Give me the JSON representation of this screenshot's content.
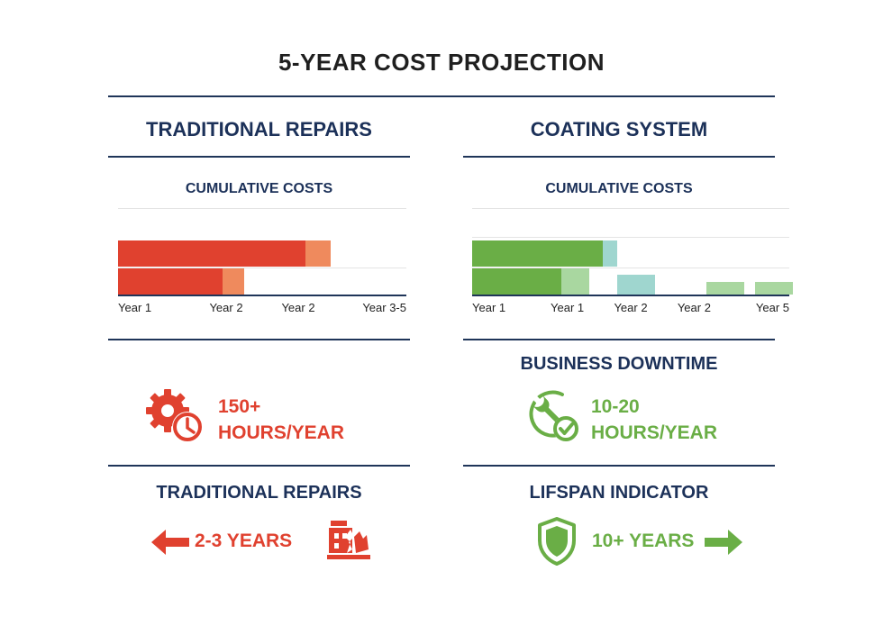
{
  "page": {
    "title": "5-YEAR COST PROJECTION"
  },
  "left": {
    "heading": "TRADITIONAL REPAIRS",
    "chart_subtitle": "CUMULATIVE COSTS",
    "downtime_value": "150+",
    "downtime_unit": "HOURS/YEAR",
    "bottom_heading": "TRADITIONAL REPAIRS",
    "lifespan": "2-3 YEARS",
    "icons": [
      "gear-clock-icon",
      "arrow-left-icon",
      "broken-building-icon"
    ]
  },
  "right": {
    "heading": "COATING SYSTEM",
    "chart_subtitle": "CUMULATIVE COSTS",
    "downtime_heading": "BUSINESS DOWNTIME",
    "downtime_value": "10-20",
    "downtime_unit": "HOURS/YEAR",
    "bottom_heading": "LIFSPAN INDICATOR",
    "lifespan": "10+ YEARS",
    "icons": [
      "wrench-check-icon",
      "shield-icon",
      "arrow-right-icon"
    ]
  },
  "colors": {
    "title_navy": "#1c3159",
    "red": "#e0412f",
    "red_light": "#ef8a5d",
    "green": "#6aae46",
    "green_light": "#a9d7a0",
    "teal_light": "#9fd6cf"
  },
  "chart_data": [
    {
      "type": "bar",
      "title": "CUMULATIVE COSTS",
      "orientation": "horizontal",
      "stacked": true,
      "tick_labels": [
        "Year 1",
        "Year 2",
        "Year 2",
        "Year 3-5"
      ],
      "rows": [
        {
          "segments": [
            {
              "value": 2.6,
              "color": "#e0412f"
            },
            {
              "value": 0.35,
              "color": "#ef8a5d"
            }
          ]
        },
        {
          "segments": [
            {
              "value": 1.45,
              "color": "#e0412f"
            },
            {
              "value": 0.3,
              "color": "#ef8a5d"
            }
          ]
        }
      ],
      "xlim": [
        0,
        4
      ]
    },
    {
      "type": "bar",
      "title": "CUMULATIVE COSTS",
      "orientation": "horizontal",
      "stacked": true,
      "tick_labels": [
        "Year 1",
        "Year 1",
        "Year 2",
        "Year 2",
        "Year 5"
      ],
      "rows": [
        {
          "segments": [
            {
              "value": 1.9,
              "color": "#6aae46"
            },
            {
              "value": 0.2,
              "color": "#9fd6cf"
            }
          ]
        },
        {
          "segments": [
            {
              "value": 1.3,
              "color": "#6aae46"
            },
            {
              "value": 0.4,
              "color": "#a9d7a0"
            }
          ]
        }
      ],
      "extra_bars": [
        {
          "start": 2.1,
          "value": 0.55,
          "color": "#9fd6cf"
        },
        {
          "start": 3.4,
          "value": 0.55,
          "color": "#a9d7a0"
        },
        {
          "start": 4.1,
          "value": 0.55,
          "color": "#a9d7a0"
        }
      ],
      "xlim": [
        0,
        4.6
      ]
    }
  ]
}
